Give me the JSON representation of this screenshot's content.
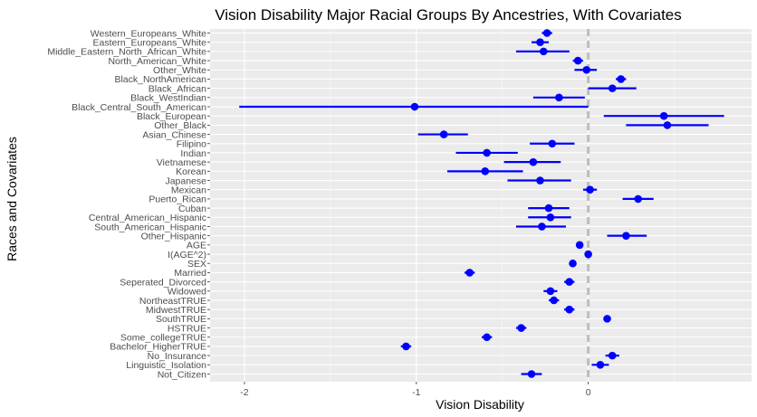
{
  "chart_data": {
    "type": "forest",
    "title": "Vision Disability Major Racial Groups By Ancestries, With Covariates",
    "xlabel": "Vision Disability",
    "ylabel": "Races and Covariates",
    "xlim": [
      -2.2,
      0.95
    ],
    "xticks": [
      -2,
      -1,
      0
    ],
    "xtick_labels": [
      "-2",
      "-1",
      "0"
    ],
    "reference_line": 0,
    "point_color": "#0000ff",
    "reference_line_color": "#bdbdbd",
    "panel_background": "#ebebeb",
    "grid": true,
    "legend": "none",
    "points": [
      {
        "label": "Western_Europeans_White",
        "estimate": -0.24,
        "lower": -0.27,
        "upper": -0.21
      },
      {
        "label": "Eastern_Europeans_White",
        "estimate": -0.28,
        "lower": -0.33,
        "upper": -0.23
      },
      {
        "label": "Middle_Eastern_North_African_White",
        "estimate": -0.26,
        "lower": -0.42,
        "upper": -0.11
      },
      {
        "label": "North_American_White",
        "estimate": -0.06,
        "lower": -0.09,
        "upper": -0.03
      },
      {
        "label": "Other_White",
        "estimate": -0.01,
        "lower": -0.08,
        "upper": 0.05
      },
      {
        "label": "Black_NorthAmerican",
        "estimate": 0.19,
        "lower": 0.16,
        "upper": 0.22
      },
      {
        "label": "Black_African",
        "estimate": 0.14,
        "lower": 0.0,
        "upper": 0.28
      },
      {
        "label": "Black_WestIndian",
        "estimate": -0.17,
        "lower": -0.32,
        "upper": -0.02
      },
      {
        "label": "Black_Central_South_American",
        "estimate": -1.01,
        "lower": -2.03,
        "upper": 0.0
      },
      {
        "label": "Black_European",
        "estimate": 0.44,
        "lower": 0.09,
        "upper": 0.79
      },
      {
        "label": "Other_Black",
        "estimate": 0.46,
        "lower": 0.22,
        "upper": 0.7
      },
      {
        "label": "Asian_Chinese",
        "estimate": -0.84,
        "lower": -0.99,
        "upper": -0.7
      },
      {
        "label": "Filipino",
        "estimate": -0.21,
        "lower": -0.34,
        "upper": -0.08
      },
      {
        "label": "Indian",
        "estimate": -0.59,
        "lower": -0.77,
        "upper": -0.41
      },
      {
        "label": "Vietnamese",
        "estimate": -0.32,
        "lower": -0.49,
        "upper": -0.16
      },
      {
        "label": "Korean",
        "estimate": -0.6,
        "lower": -0.82,
        "upper": -0.38
      },
      {
        "label": "Japanese",
        "estimate": -0.28,
        "lower": -0.47,
        "upper": -0.1
      },
      {
        "label": "Mexican",
        "estimate": 0.01,
        "lower": -0.03,
        "upper": 0.05
      },
      {
        "label": "Puerto_Rican",
        "estimate": 0.29,
        "lower": 0.2,
        "upper": 0.38
      },
      {
        "label": "Cuban",
        "estimate": -0.23,
        "lower": -0.35,
        "upper": -0.11
      },
      {
        "label": "Central_American_Hispanic",
        "estimate": -0.22,
        "lower": -0.35,
        "upper": -0.1
      },
      {
        "label": "South_American_Hispanic",
        "estimate": -0.27,
        "lower": -0.42,
        "upper": -0.13
      },
      {
        "label": "Other_Hispanic",
        "estimate": 0.22,
        "lower": 0.11,
        "upper": 0.34
      },
      {
        "label": "AGE",
        "estimate": -0.05,
        "lower": -0.06,
        "upper": -0.04
      },
      {
        "label": "I(AGE^2)",
        "estimate": 0.0,
        "lower": 0.0,
        "upper": 0.0
      },
      {
        "label": "SEX",
        "estimate": -0.09,
        "lower": -0.1,
        "upper": -0.08
      },
      {
        "label": "Married",
        "estimate": -0.69,
        "lower": -0.72,
        "upper": -0.66
      },
      {
        "label": "Seperated_Divorced",
        "estimate": -0.11,
        "lower": -0.14,
        "upper": -0.08
      },
      {
        "label": "Widowed",
        "estimate": -0.22,
        "lower": -0.26,
        "upper": -0.18
      },
      {
        "label": "NortheastTRUE",
        "estimate": -0.2,
        "lower": -0.23,
        "upper": -0.17
      },
      {
        "label": "MidwestTRUE",
        "estimate": -0.11,
        "lower": -0.14,
        "upper": -0.08
      },
      {
        "label": "SouthTRUE",
        "estimate": 0.11,
        "lower": 0.09,
        "upper": 0.13
      },
      {
        "label": "HSTRUE",
        "estimate": -0.39,
        "lower": -0.42,
        "upper": -0.36
      },
      {
        "label": "Some_collegeTRUE",
        "estimate": -0.59,
        "lower": -0.62,
        "upper": -0.56
      },
      {
        "label": "Bachelor_HigherTRUE",
        "estimate": -1.06,
        "lower": -1.09,
        "upper": -1.03
      },
      {
        "label": "No_Insurance",
        "estimate": 0.14,
        "lower": 0.1,
        "upper": 0.18
      },
      {
        "label": "Linguistic_Isolation",
        "estimate": 0.07,
        "lower": 0.02,
        "upper": 0.12
      },
      {
        "label": "Not_Citizen",
        "estimate": -0.33,
        "lower": -0.39,
        "upper": -0.27
      }
    ]
  }
}
